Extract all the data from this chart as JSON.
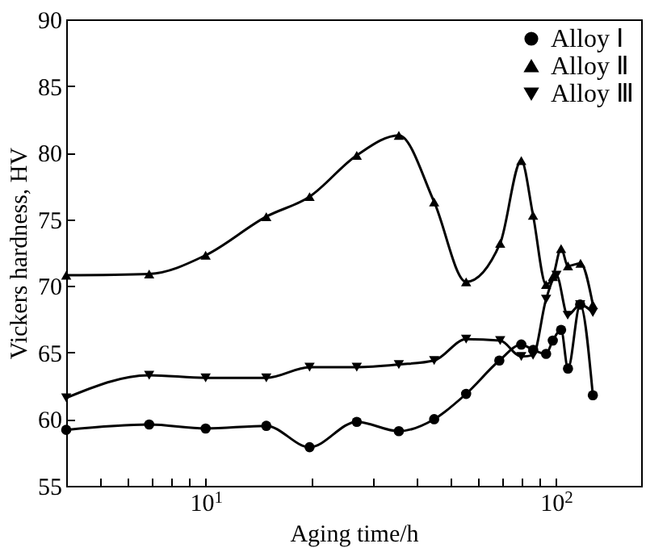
{
  "chart_data": {
    "type": "line",
    "xlabel": "Aging time/h",
    "ylabel": "Vickers hardness, HV",
    "log": "x",
    "xlim": [
      4,
      175
    ],
    "ylim": [
      55,
      90
    ],
    "xticks": [
      {
        "value": 5,
        "label": null
      },
      {
        "value": 6,
        "label": null
      },
      {
        "value": 7,
        "label": null
      },
      {
        "value": 8,
        "label": null
      },
      {
        "value": 9,
        "label": null
      },
      {
        "value": 10,
        "label": "10$^{1}$"
      },
      {
        "value": 20,
        "label": null
      },
      {
        "value": 30,
        "label": null
      },
      {
        "value": 40,
        "label": null
      },
      {
        "value": 50,
        "label": null
      },
      {
        "value": 60,
        "label": null
      },
      {
        "value": 70,
        "label": null
      },
      {
        "value": 80,
        "label": null
      },
      {
        "value": 90,
        "label": null
      },
      {
        "value": 100,
        "label": "10$^{2}$"
      }
    ],
    "yticks": [
      55,
      60,
      65,
      70,
      75,
      80,
      85,
      90
    ],
    "grid": false,
    "legend": "top right",
    "line_style": "solid",
    "series": [
      {
        "name": "Alloy Ⅰ",
        "color": "#000000",
        "marker": "circle",
        "x": [
          4,
          6.9,
          10,
          14.9,
          19.8,
          27,
          35.6,
          44.9,
          55.4,
          68.9,
          79.6,
          86.1,
          93.7,
          97.9,
          103.4,
          108.2,
          117.2,
          127.4
        ],
        "values": [
          59.2,
          59.6,
          59.3,
          59.5,
          57.9,
          59.8,
          59.1,
          60.0,
          61.9,
          64.4,
          65.6,
          65.2,
          64.9,
          65.9,
          66.7,
          63.8,
          68.6,
          61.8
        ]
      },
      {
        "name": "Alloy Ⅱ",
        "color": "#000000",
        "marker": "triangle",
        "x": [
          4,
          6.9,
          10,
          14.9,
          19.8,
          27,
          35.6,
          44.9,
          55.4,
          69.3,
          79.6,
          86,
          93.7,
          98,
          103.4,
          108.2,
          117.5,
          127.4
        ],
        "values": [
          70.8,
          70.9,
          72.3,
          75.2,
          76.7,
          79.8,
          81.3,
          76.3,
          70.3,
          73.2,
          79.4,
          75.3,
          70.1,
          70.7,
          72.8,
          71.5,
          71.7,
          68.6
        ]
      },
      {
        "name": "Alloy Ⅲ",
        "color": "#000000",
        "marker": "triangle-down",
        "x": [
          4,
          6.9,
          10,
          14.9,
          19.8,
          27,
          35.6,
          44.9,
          55.4,
          69.3,
          79.6,
          86,
          93.7,
          100.3,
          108,
          117.2,
          127.4
        ],
        "values": [
          61.6,
          63.3,
          63.1,
          63.1,
          63.9,
          63.9,
          64.1,
          64.4,
          66.0,
          65.9,
          64.7,
          64.8,
          69.0,
          70.8,
          67.8,
          68.6,
          68.0
        ]
      }
    ]
  }
}
